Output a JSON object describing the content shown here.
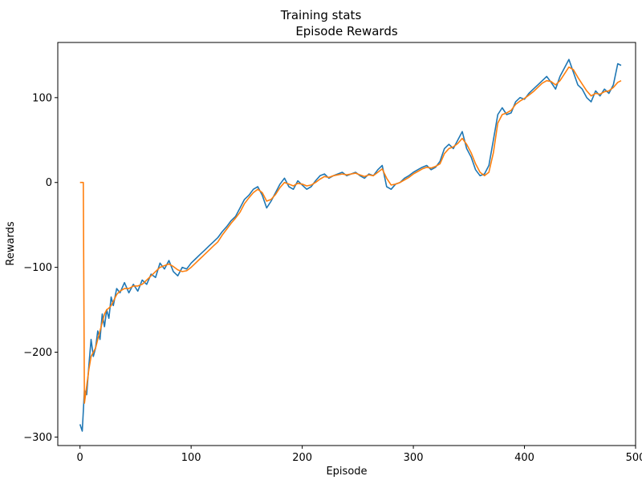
{
  "chart_data": {
    "type": "line",
    "suptitle": "Training stats",
    "title": "Episode Rewards",
    "xlabel": "Episode",
    "ylabel": "Rewards",
    "xlim": [
      -20,
      500
    ],
    "ylim": [
      -310,
      165
    ],
    "xticks": [
      0,
      100,
      200,
      300,
      400,
      500
    ],
    "yticks": [
      -300,
      -200,
      -100,
      0,
      100
    ],
    "xtick_labels": [
      "0",
      "100",
      "200",
      "300",
      "400",
      "500"
    ],
    "ytick_labels": [
      "−300",
      "−200",
      "−100",
      "0",
      "100"
    ],
    "grid": false,
    "legend": "none",
    "series": [
      {
        "role": "raw",
        "color": "#1f77b4",
        "x": [
          0,
          2,
          4,
          6,
          8,
          10,
          12,
          14,
          16,
          18,
          20,
          22,
          24,
          26,
          28,
          30,
          33,
          36,
          40,
          44,
          48,
          52,
          56,
          60,
          64,
          68,
          72,
          76,
          80,
          84,
          88,
          92,
          96,
          100,
          104,
          108,
          112,
          116,
          120,
          124,
          128,
          132,
          136,
          140,
          144,
          148,
          152,
          156,
          160,
          164,
          168,
          172,
          176,
          180,
          184,
          188,
          192,
          196,
          200,
          204,
          208,
          212,
          216,
          220,
          224,
          228,
          232,
          236,
          240,
          244,
          248,
          252,
          256,
          260,
          264,
          268,
          272,
          276,
          280,
          284,
          288,
          292,
          296,
          300,
          304,
          308,
          312,
          316,
          320,
          324,
          328,
          332,
          336,
          340,
          344,
          348,
          352,
          356,
          360,
          364,
          368,
          372,
          376,
          380,
          384,
          388,
          392,
          396,
          400,
          404,
          408,
          412,
          416,
          420,
          424,
          428,
          432,
          436,
          440,
          444,
          448,
          452,
          456,
          460,
          464,
          468,
          472,
          476,
          480,
          484,
          487
        ],
        "y": [
          -285,
          -293,
          -245,
          -250,
          -215,
          -185,
          -205,
          -195,
          -175,
          -185,
          -155,
          -170,
          -150,
          -160,
          -135,
          -145,
          -125,
          -130,
          -118,
          -130,
          -120,
          -128,
          -115,
          -120,
          -108,
          -112,
          -95,
          -102,
          -92,
          -105,
          -110,
          -100,
          -102,
          -95,
          -90,
          -85,
          -80,
          -75,
          -70,
          -65,
          -58,
          -52,
          -45,
          -40,
          -30,
          -20,
          -15,
          -8,
          -5,
          -15,
          -30,
          -22,
          -12,
          -2,
          5,
          -5,
          -8,
          2,
          -3,
          -8,
          -5,
          2,
          8,
          10,
          5,
          8,
          10,
          12,
          8,
          10,
          12,
          8,
          5,
          10,
          8,
          15,
          20,
          -5,
          -8,
          -2,
          0,
          5,
          8,
          12,
          15,
          18,
          20,
          15,
          18,
          25,
          40,
          45,
          40,
          50,
          60,
          40,
          30,
          15,
          8,
          10,
          20,
          50,
          80,
          88,
          80,
          82,
          95,
          100,
          98,
          105,
          110,
          115,
          120,
          125,
          118,
          110,
          125,
          135,
          145,
          130,
          115,
          110,
          100,
          95,
          108,
          102,
          110,
          105,
          115,
          140,
          138
        ]
      },
      {
        "role": "moving average",
        "color": "#ff7f0e",
        "x": [
          0,
          3,
          4,
          6,
          8,
          10,
          12,
          14,
          16,
          18,
          20,
          22,
          24,
          26,
          28,
          30,
          33,
          36,
          40,
          44,
          48,
          52,
          56,
          60,
          64,
          68,
          72,
          76,
          80,
          84,
          88,
          92,
          96,
          100,
          104,
          108,
          112,
          116,
          120,
          124,
          128,
          132,
          136,
          140,
          144,
          148,
          152,
          156,
          160,
          164,
          168,
          172,
          176,
          180,
          184,
          188,
          192,
          196,
          200,
          204,
          208,
          212,
          216,
          220,
          224,
          228,
          232,
          236,
          240,
          244,
          248,
          252,
          256,
          260,
          264,
          268,
          272,
          276,
          280,
          284,
          288,
          292,
          296,
          300,
          304,
          308,
          312,
          316,
          320,
          324,
          328,
          332,
          336,
          340,
          344,
          348,
          352,
          356,
          360,
          364,
          368,
          372,
          376,
          380,
          384,
          388,
          392,
          396,
          400,
          404,
          408,
          412,
          416,
          420,
          424,
          428,
          432,
          436,
          440,
          444,
          448,
          452,
          456,
          460,
          464,
          468,
          472,
          476,
          480,
          484,
          487
        ],
        "y": [
          0,
          0,
          -260,
          -240,
          -220,
          -205,
          -200,
          -195,
          -185,
          -175,
          -165,
          -155,
          -150,
          -148,
          -145,
          -140,
          -132,
          -128,
          -125,
          -125,
          -122,
          -122,
          -120,
          -115,
          -110,
          -105,
          -100,
          -98,
          -96,
          -99,
          -103,
          -105,
          -104,
          -100,
          -95,
          -90,
          -85,
          -80,
          -75,
          -70,
          -62,
          -55,
          -48,
          -42,
          -35,
          -25,
          -18,
          -12,
          -8,
          -12,
          -22,
          -20,
          -14,
          -6,
          0,
          -2,
          -4,
          -1,
          -2,
          -4,
          -3,
          0,
          4,
          7,
          6,
          8,
          9,
          10,
          9,
          10,
          11,
          9,
          7,
          9,
          8,
          12,
          16,
          5,
          -3,
          -2,
          0,
          3,
          6,
          10,
          13,
          16,
          18,
          17,
          19,
          22,
          34,
          40,
          42,
          46,
          52,
          45,
          35,
          22,
          12,
          8,
          12,
          35,
          70,
          80,
          82,
          85,
          92,
          96,
          99,
          103,
          107,
          112,
          117,
          120,
          119,
          115,
          120,
          128,
          136,
          133,
          124,
          116,
          108,
          102,
          105,
          104,
          107,
          108,
          112,
          118,
          120
        ]
      }
    ]
  }
}
